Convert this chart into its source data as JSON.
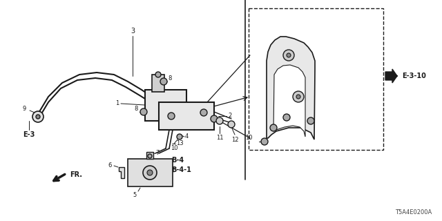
{
  "bg_color": "#ffffff",
  "line_color": "#1a1a1a",
  "footer_code": "T5A4E0200A",
  "fr_label": "FR.",
  "ref_label_e3": "E-3",
  "ref_label_e310": "E-3-10",
  "ref_label_b4": "B-4",
  "ref_label_b41": "B-4-1",
  "fig_width": 6.4,
  "fig_height": 3.2,
  "dpi": 100
}
